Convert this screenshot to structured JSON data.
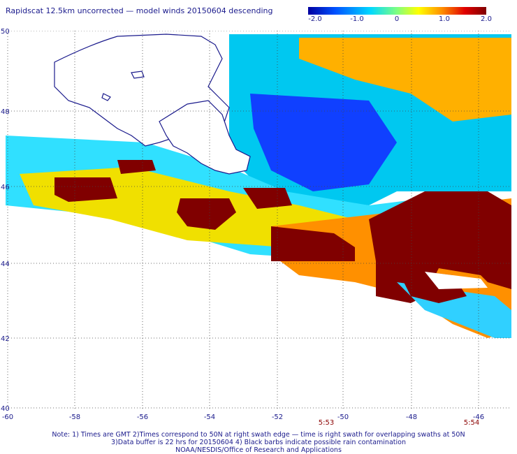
{
  "title": "Rapidscat 12.5km uncorrected — model winds 20150604 descending",
  "colorbar": {
    "labels": [
      "-2.0",
      "-1.0",
      "0",
      "1.0",
      "2.0"
    ],
    "values": [
      -2.0,
      -1.0,
      0,
      1.0,
      2.0
    ],
    "colors": [
      "#0000a0",
      "#0050ff",
      "#00d8ff",
      "#80ff80",
      "#ffff00",
      "#ff9000",
      "#e00000",
      "#800000"
    ]
  },
  "map": {
    "lat_labels": [
      "50",
      "48",
      "46",
      "44",
      "42",
      "40"
    ],
    "lon_labels": [
      "-60",
      "-58",
      "-56",
      "-54",
      "-52",
      "-50",
      "-48",
      "-46"
    ],
    "lat_range": [
      40,
      50
    ],
    "lon_range": [
      -60,
      -45
    ],
    "land_color": "#ffffff",
    "coast_color": "#1a1a8c",
    "grid_style": "dotted"
  },
  "times": [
    "5:53",
    "5:54"
  ],
  "notes": [
    "Note: 1) Times are GMT 2)Times correspond to 50N at right swath edge — time is right swath for overlapping swaths at 50N",
    "3)Data buffer is 22 hrs for 20150604 4) Black barbs indicate possible rain contamination",
    "NOAA/NESDIS/Office of Research and Applications"
  ]
}
